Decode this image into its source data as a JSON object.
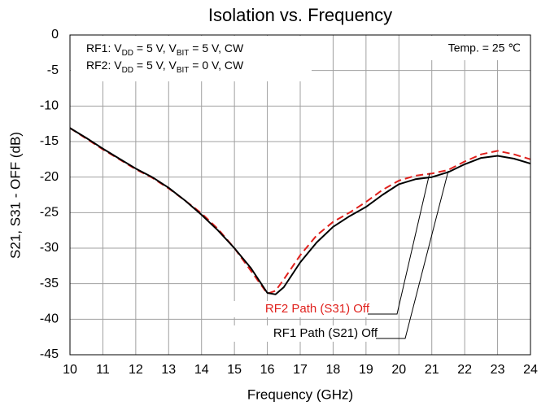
{
  "chart_data": {
    "type": "line",
    "title": "Isolation vs. Frequency",
    "xlabel": "Frequency (GHz)",
    "ylabel": "S21, S31 - OFF (dB)",
    "conditions": [
      [
        "RF1: V",
        {
          "sub": "DD"
        },
        " = 5 V, V",
        {
          "sub": "BIT"
        },
        " = 5 V, CW"
      ],
      [
        "RF2: V",
        {
          "sub": "DD"
        },
        " = 5 V, V",
        {
          "sub": "BIT"
        },
        " = 0 V, CW"
      ]
    ],
    "temperature_note": "Temp. = 25 ℃",
    "grid": true,
    "xlim": [
      10,
      24
    ],
    "xticks": [
      10,
      11,
      12,
      13,
      14,
      15,
      16,
      17,
      18,
      19,
      20,
      21,
      22,
      23,
      24
    ],
    "ylim": [
      -45,
      0
    ],
    "yticks": [
      0,
      -5,
      -10,
      -15,
      -20,
      -25,
      -30,
      -35,
      -40,
      -45
    ],
    "x": [
      10,
      10.5,
      11,
      11.5,
      12,
      12.5,
      13,
      13.5,
      14,
      14.5,
      15,
      15.5,
      16,
      16.25,
      16.5,
      17,
      17.5,
      18,
      18.5,
      19,
      19.5,
      20,
      20.5,
      21,
      21.5,
      22,
      22.5,
      23,
      23.5,
      24
    ],
    "series": [
      {
        "name": "RF2 Path (S31) Off",
        "color": "#e0211d",
        "dashed": true,
        "values": [
          -13.1,
          -14.6,
          -16.1,
          -17.5,
          -18.9,
          -20.1,
          -21.6,
          -23.3,
          -25.1,
          -27.3,
          -30.0,
          -33.2,
          -36.4,
          -36.0,
          -34.4,
          -31.0,
          -28.2,
          -26.3,
          -25.0,
          -23.5,
          -21.8,
          -20.5,
          -19.8,
          -19.5,
          -19.0,
          -17.8,
          -16.8,
          -16.3,
          -16.8,
          -17.5
        ]
      },
      {
        "name": "RF1 Path (S21) Off",
        "color": "#000000",
        "dashed": false,
        "values": [
          -13.1,
          -14.5,
          -16.0,
          -17.4,
          -18.8,
          -20.0,
          -21.5,
          -23.3,
          -25.3,
          -27.5,
          -30.0,
          -32.8,
          -36.3,
          -36.5,
          -35.5,
          -32.0,
          -29.2,
          -27.0,
          -25.5,
          -24.2,
          -22.5,
          -21.0,
          -20.3,
          -20.0,
          -19.3,
          -18.2,
          -17.3,
          -17.0,
          -17.4,
          -18.1
        ]
      }
    ]
  }
}
